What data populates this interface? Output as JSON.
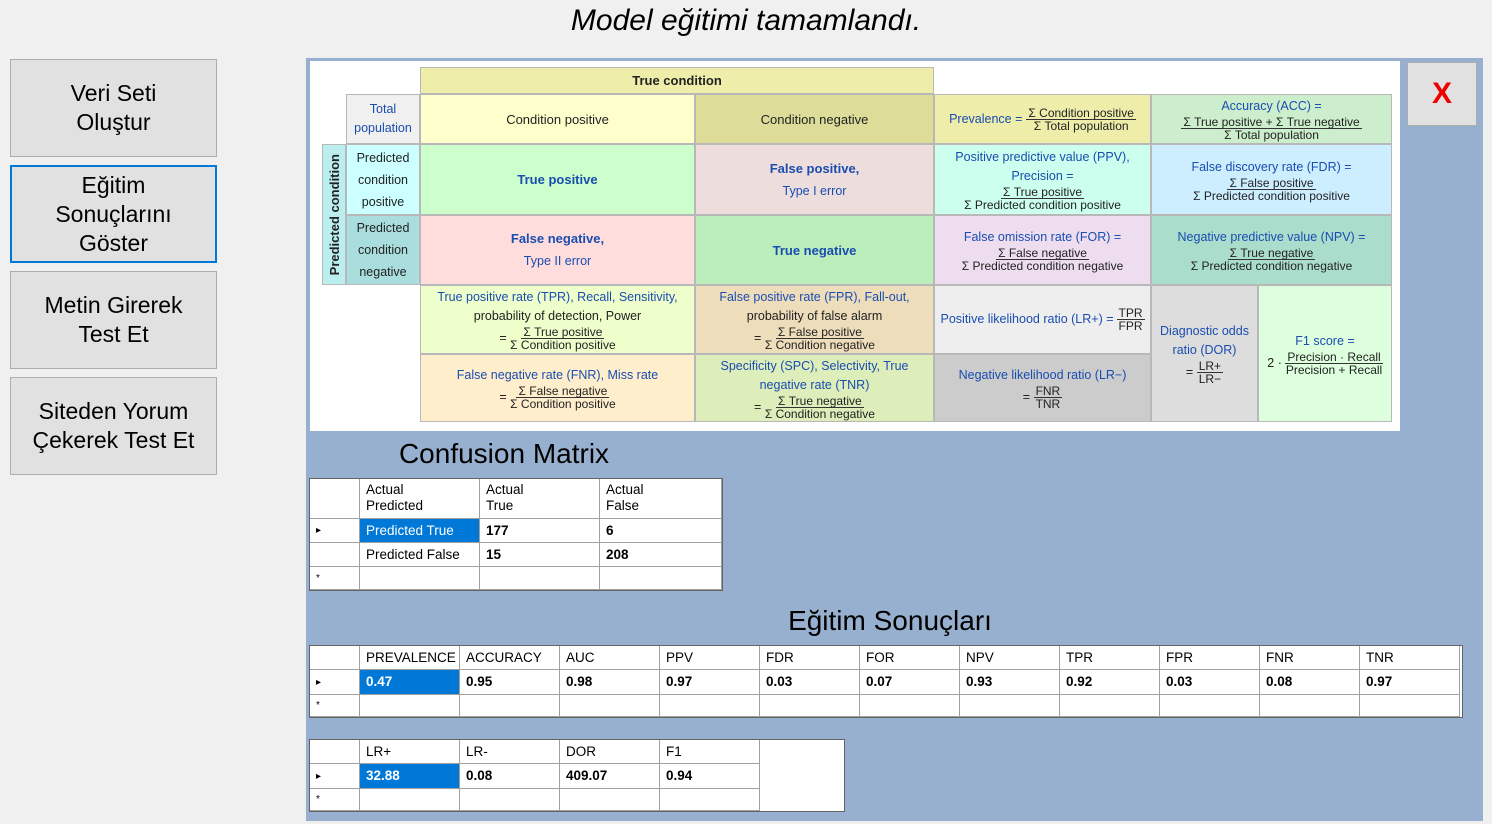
{
  "window": {
    "title": "Model eğitimi tamamlandı.",
    "close_label": "X"
  },
  "nav": [
    {
      "label": "Veri Seti\nOluştur",
      "active": false
    },
    {
      "label": "Eğitim\nSonuçlarını\nGöster",
      "active": true
    },
    {
      "label": "Metin Girerek\nTest Et",
      "active": false
    },
    {
      "label": "Siteden Yorum\nÇekerek Test Et",
      "active": false
    }
  ],
  "reference": {
    "true_condition": "True condition",
    "total_population": "Total population",
    "condition_positive": "Condition positive",
    "condition_negative": "Condition negative",
    "predicted_condition": "Predicted condition",
    "predicted_condition_positive": "Predicted condition positive",
    "predicted_condition_negative": "Predicted condition negative",
    "true_positive": "True positive",
    "false_positive": "False positive,",
    "type1": "Type I error",
    "false_negative": "False negative,",
    "type2": "Type II error",
    "true_negative": "True negative",
    "prevalence": "Prevalence =",
    "prevalence_n": "Σ Condition positive",
    "prevalence_d": "Σ Total population",
    "accuracy": "Accuracy (ACC) =",
    "accuracy_n": "Σ True positive + Σ True negative",
    "accuracy_d": "Σ Total population",
    "ppv": "Positive predictive value (PPV),",
    "precision": "Precision =",
    "ppv_n": "Σ True positive",
    "ppv_d": "Σ Predicted condition positive",
    "fdr": "False discovery rate (FDR) =",
    "fdr_n": "Σ False positive",
    "fdr_d": "Σ Predicted condition positive",
    "for": "False omission rate (FOR) =",
    "for_n": "Σ False negative",
    "for_d": "Σ Predicted condition negative",
    "npv": "Negative predictive value (NPV) =",
    "npv_n": "Σ True negative",
    "npv_d": "Σ Predicted condition negative",
    "tpr": "True positive rate (TPR), Recall, Sensitivity,",
    "tpr2": "probability of detection, Power",
    "tpr_n": "Σ True positive",
    "tpr_d": "Σ Condition positive",
    "fpr": "False positive rate (FPR), Fall-out,",
    "fpr2": "probability of false alarm",
    "fpr_n": "Σ False positive",
    "fpr_d": "Σ Condition negative",
    "lrp": "Positive likelihood ratio (LR+) =",
    "lrp_n": "TPR",
    "lrp_d": "FPR",
    "dor": "Diagnostic odds ratio (DOR)",
    "dor_eq": "=",
    "dor_n": "LR+",
    "dor_d": "LR−",
    "f1": "F1 score =",
    "f1_pre": "2 ·",
    "f1_n": "Precision · Recall",
    "f1_d": "Precision + Recall",
    "fnr": "False negative rate (FNR), Miss rate",
    "fnr_n": "Σ False negative",
    "fnr_d": "Σ Condition positive",
    "spc": "Specificity (SPC), Selectivity, True negative rate (TNR)",
    "spc_n": "Σ True negative",
    "spc_d": "Σ Condition negative",
    "lrn": "Negative likelihood ratio (LR−)",
    "lrn_eq": "=",
    "lrn_n": "FNR",
    "lrn_d": "TNR",
    "eq": "="
  },
  "confusion": {
    "title": "Confusion Matrix",
    "headers": [
      "Actual\nPredicted",
      "Actual\nTrue",
      "Actual\nFalse"
    ],
    "rows": [
      {
        "label": "Predicted True",
        "tp": "177",
        "fp": "6"
      },
      {
        "label": "Predicted False",
        "tp": "15",
        "fp": "208"
      }
    ]
  },
  "results": {
    "title": "Eğitim Sonuçları",
    "headers": [
      "PREVALENCE",
      "ACCURACY",
      "AUC",
      "PPV",
      "FDR",
      "FOR",
      "NPV",
      "TPR",
      "FPR",
      "FNR",
      "TNR"
    ],
    "values": [
      "0.47",
      "0.95",
      "0.98",
      "0.97",
      "0.03",
      "0.07",
      "0.93",
      "0.92",
      "0.03",
      "0.08",
      "0.97"
    ]
  },
  "ratios": {
    "headers": [
      "LR+",
      "LR-",
      "DOR",
      "F1"
    ],
    "values": [
      "32.88",
      "0.08",
      "409.07",
      "0.94"
    ]
  },
  "grid_glyphs": {
    "current_row": "▸",
    "new_row": "*"
  }
}
